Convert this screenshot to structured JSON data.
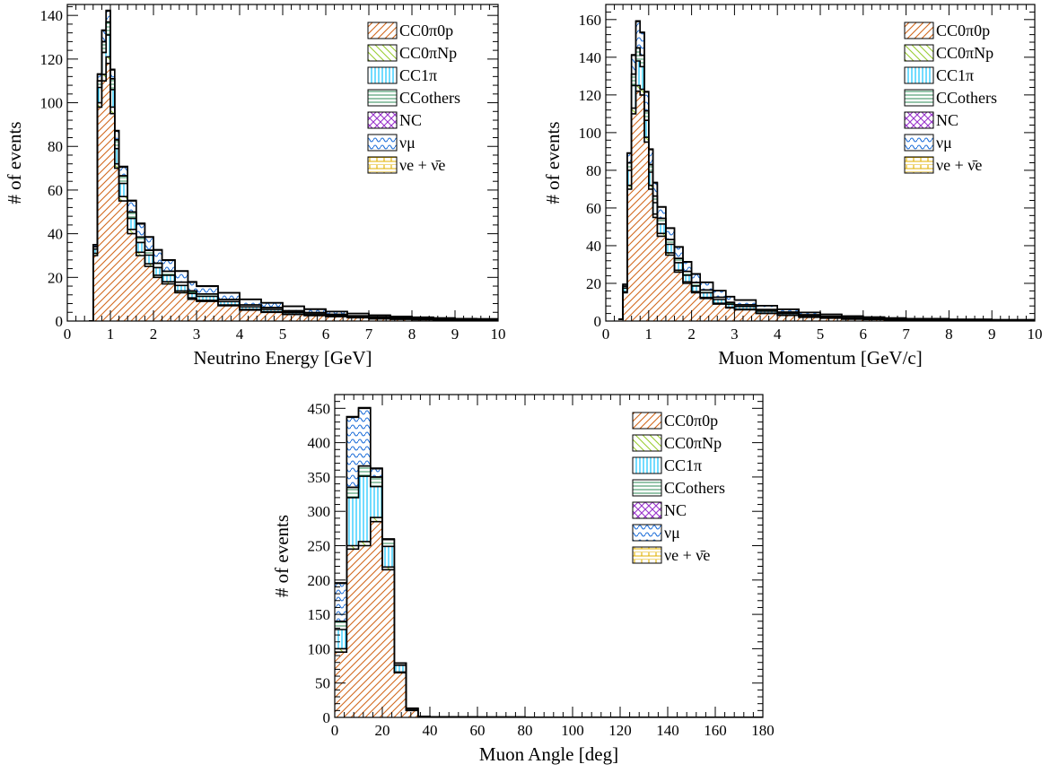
{
  "chart_data": [
    {
      "type": "area",
      "xlabel": "Neutrino Energy [GeV]",
      "ylabel": "# of events",
      "xlim": [
        0,
        10
      ],
      "ylim": [
        0,
        145
      ],
      "xticks": [
        "0",
        "1",
        "2",
        "3",
        "4",
        "5",
        "6",
        "7",
        "8",
        "9",
        "10"
      ],
      "yticks": [
        "0",
        "20",
        "40",
        "60",
        "80",
        "100",
        "120",
        "140"
      ],
      "legend_position": "top-right",
      "stacked": true,
      "x": [
        0.5,
        0.6,
        0.7,
        0.8,
        0.9,
        1.0,
        1.1,
        1.2,
        1.4,
        1.6,
        1.8,
        2.0,
        2.2,
        2.5,
        2.8,
        3.0,
        3.5,
        4.0,
        4.5,
        5.0,
        5.5,
        6.0,
        6.5,
        7.0,
        7.5,
        8.0,
        8.5,
        9.0,
        9.5,
        10.0
      ],
      "series": [
        {
          "name": "CC0π0p",
          "color": "#d2691e",
          "values": [
            0,
            30,
            98,
            110,
            118,
            95,
            70,
            55,
            40,
            30,
            25,
            20,
            17,
            13,
            10,
            9,
            7,
            5,
            4,
            3,
            2.5,
            2,
            1.5,
            1,
            0.8,
            0.6,
            0.5,
            0.4,
            0.3,
            0.2
          ]
        },
        {
          "name": "CC0πNp",
          "color": "#9acd32",
          "values": [
            0,
            1,
            2,
            3,
            3,
            3,
            2,
            2,
            2,
            1.5,
            1.2,
            1,
            1,
            0.8,
            0.6,
            0.5,
            0.4,
            0.3,
            0.3,
            0.2,
            0.2,
            0.1,
            0.1,
            0.1,
            0.1,
            0.1,
            0.05,
            0.05,
            0.05,
            0.05
          ]
        },
        {
          "name": "CC1π",
          "color": "#00bfff",
          "values": [
            0,
            2,
            7,
            10,
            10,
            8,
            7,
            6,
            5,
            4.5,
            4,
            3.5,
            3,
            2.5,
            2,
            1.8,
            1.5,
            1.2,
            1,
            0.8,
            0.6,
            0.5,
            0.4,
            0.3,
            0.3,
            0.2,
            0.2,
            0.1,
            0.1,
            0.1
          ]
        },
        {
          "name": "CCothers",
          "color": "#2e8b57",
          "values": [
            0,
            1,
            3,
            5,
            6,
            5,
            4,
            3.5,
            3,
            2.5,
            2.2,
            2,
            1.8,
            1.5,
            1.2,
            1.1,
            1,
            0.9,
            0.8,
            0.7,
            0.6,
            0.5,
            0.4,
            0.4,
            0.3,
            0.3,
            0.2,
            0.2,
            0.2,
            0.1
          ]
        },
        {
          "name": "NC",
          "color": "#9932cc",
          "values": [
            0,
            0,
            0,
            0,
            0,
            0,
            0,
            0,
            0,
            0,
            0,
            0,
            0,
            0,
            0,
            0,
            0,
            0,
            0,
            0,
            0,
            0,
            0,
            0,
            0,
            0,
            0,
            0,
            0,
            0
          ]
        },
        {
          "name": "νμ",
          "color": "#1e6fd9",
          "values": [
            0,
            1,
            3,
            5,
            5,
            4,
            4,
            4,
            5,
            6,
            6,
            6,
            5,
            5,
            4,
            3.5,
            3,
            2.5,
            2.2,
            2,
            1.5,
            1.2,
            1,
            0.8,
            0.6,
            0.5,
            0.4,
            0.3,
            0.3,
            0.2
          ]
        },
        {
          "name": "νe + ν̄e",
          "color": "#e0b000",
          "values": [
            0,
            0,
            0.2,
            0.3,
            0.3,
            0.3,
            0.3,
            0.3,
            0.3,
            0.3,
            0.2,
            0.2,
            0.2,
            0.2,
            0.2,
            0.2,
            0.1,
            0.1,
            0.1,
            0.1,
            0.1,
            0.1,
            0.1,
            0.1,
            0.05,
            0.05,
            0.05,
            0.05,
            0.05,
            0.05
          ]
        }
      ]
    },
    {
      "type": "area",
      "xlabel": "Muon Momentum [GeV/c]",
      "ylabel": "# of events",
      "xlim": [
        0,
        10
      ],
      "ylim": [
        0,
        168
      ],
      "xticks": [
        "0",
        "1",
        "2",
        "3",
        "4",
        "5",
        "6",
        "7",
        "8",
        "9",
        "10"
      ],
      "yticks": [
        "0",
        "20",
        "40",
        "60",
        "80",
        "100",
        "120",
        "140",
        "160"
      ],
      "legend_position": "top-right",
      "stacked": true,
      "x": [
        0.3,
        0.4,
        0.5,
        0.6,
        0.7,
        0.8,
        0.9,
        1.0,
        1.1,
        1.2,
        1.4,
        1.6,
        1.8,
        2.0,
        2.2,
        2.5,
        2.8,
        3.0,
        3.5,
        4.0,
        4.5,
        5.0,
        5.5,
        6.0,
        6.5,
        7.0,
        8.0,
        9.0,
        10.0
      ],
      "series": [
        {
          "name": "CC0π0p",
          "color": "#d2691e",
          "values": [
            1,
            15,
            70,
            110,
            122,
            120,
            95,
            70,
            55,
            45,
            35,
            26,
            20,
            15,
            12,
            9,
            7,
            6,
            4,
            3,
            2,
            1.5,
            1,
            0.8,
            0.6,
            0.4,
            0.3,
            0.2,
            0.1
          ]
        },
        {
          "name": "CC0πNp",
          "color": "#9acd32",
          "values": [
            0,
            0.5,
            2,
            3,
            3,
            3,
            2.5,
            2,
            1.8,
            1.5,
            1.2,
            1,
            0.8,
            0.6,
            0.5,
            0.4,
            0.3,
            0.3,
            0.2,
            0.2,
            0.1,
            0.1,
            0.1,
            0.05,
            0.05,
            0.05,
            0.05,
            0.05,
            0.05
          ]
        },
        {
          "name": "CC1π",
          "color": "#00bfff",
          "values": [
            0,
            2,
            8,
            12,
            13,
            12,
            9,
            7,
            6,
            5,
            4.5,
            4,
            3.5,
            3,
            2.5,
            2,
            1.6,
            1.4,
            1.1,
            0.9,
            0.7,
            0.5,
            0.4,
            0.3,
            0.2,
            0.2,
            0.1,
            0.1,
            0.05
          ]
        },
        {
          "name": "CCothers",
          "color": "#2e8b57",
          "values": [
            0,
            1,
            4,
            6,
            7,
            6,
            5,
            4,
            3.5,
            3,
            2.5,
            2.2,
            2,
            1.8,
            1.5,
            1.2,
            1,
            0.9,
            0.8,
            0.6,
            0.5,
            0.4,
            0.3,
            0.3,
            0.2,
            0.2,
            0.1,
            0.1,
            0.05
          ]
        },
        {
          "name": "NC",
          "color": "#9932cc",
          "values": [
            0,
            0,
            0,
            0,
            0,
            0,
            0,
            0,
            0,
            0,
            0,
            0,
            0,
            0,
            0,
            0,
            0,
            0,
            0,
            0,
            0,
            0,
            0,
            0,
            0,
            0,
            0,
            0,
            0
          ]
        },
        {
          "name": "νμ",
          "color": "#1e6fd9",
          "values": [
            0,
            1,
            5,
            10,
            14,
            12,
            10,
            8,
            7,
            6,
            6,
            6,
            5,
            4.5,
            4,
            3.5,
            3,
            2.5,
            2,
            1.5,
            1.2,
            1,
            0.8,
            0.6,
            0.5,
            0.4,
            0.3,
            0.2,
            0.1
          ]
        },
        {
          "name": "νe + ν̄e",
          "color": "#e0b000",
          "values": [
            0,
            0,
            0.2,
            0.3,
            0.3,
            0.3,
            0.3,
            0.3,
            0.3,
            0.2,
            0.2,
            0.2,
            0.2,
            0.2,
            0.1,
            0.1,
            0.1,
            0.1,
            0.1,
            0.1,
            0.1,
            0.05,
            0.05,
            0.05,
            0.05,
            0.05,
            0.05,
            0.05,
            0.05
          ]
        }
      ]
    },
    {
      "type": "area",
      "xlabel": "Muon Angle [deg]",
      "ylabel": "# of events",
      "xlim": [
        0,
        180
      ],
      "ylim": [
        0,
        470
      ],
      "xticks": [
        "0",
        "20",
        "40",
        "60",
        "80",
        "100",
        "120",
        "140",
        "160",
        "180"
      ],
      "yticks": [
        "0",
        "50",
        "100",
        "150",
        "200",
        "250",
        "300",
        "350",
        "400",
        "450"
      ],
      "legend_position": "top-right",
      "stacked": true,
      "x": [
        0,
        5,
        10,
        15,
        20,
        25,
        30,
        35,
        40,
        50,
        60,
        80,
        100,
        120,
        140,
        160,
        180
      ],
      "series": [
        {
          "name": "CC0π0p",
          "color": "#d2691e",
          "values": [
            95,
            245,
            250,
            285,
            215,
            65,
            10,
            1,
            0.5,
            0.3,
            0.2,
            0.1,
            0.05,
            0.05,
            0.05,
            0.05,
            0.05
          ]
        },
        {
          "name": "CC0πNp",
          "color": "#9acd32",
          "values": [
            5,
            5,
            6,
            6,
            4,
            1,
            0.3,
            0.1,
            0.05,
            0.05,
            0.05,
            0.05,
            0.05,
            0.05,
            0.05,
            0.05,
            0.05
          ]
        },
        {
          "name": "CC1π",
          "color": "#00bfff",
          "values": [
            28,
            70,
            95,
            45,
            30,
            10,
            2,
            0.3,
            0.2,
            0.1,
            0.1,
            0.05,
            0.05,
            0.05,
            0.05,
            0.05,
            0.05
          ]
        },
        {
          "name": "CCothers",
          "color": "#2e8b57",
          "values": [
            12,
            15,
            15,
            14,
            10,
            3,
            1,
            0.2,
            0.1,
            0.05,
            0.05,
            0.05,
            0.05,
            0.05,
            0.05,
            0.05,
            0.05
          ]
        },
        {
          "name": "NC",
          "color": "#9932cc",
          "values": [
            0,
            0,
            0,
            0,
            0,
            0,
            0,
            0,
            0,
            0,
            0,
            0,
            0,
            0,
            0,
            0,
            0
          ]
        },
        {
          "name": "νμ",
          "color": "#1e6fd9",
          "values": [
            55,
            102,
            84,
            12,
            0,
            0,
            0,
            0,
            0,
            0,
            0,
            0,
            0,
            0,
            0,
            0,
            0
          ]
        },
        {
          "name": "νe + ν̄e",
          "color": "#e0b000",
          "values": [
            1,
            1,
            1,
            1,
            1,
            0.3,
            0.1,
            0,
            0,
            0,
            0,
            0,
            0,
            0,
            0,
            0,
            0
          ]
        }
      ]
    }
  ]
}
